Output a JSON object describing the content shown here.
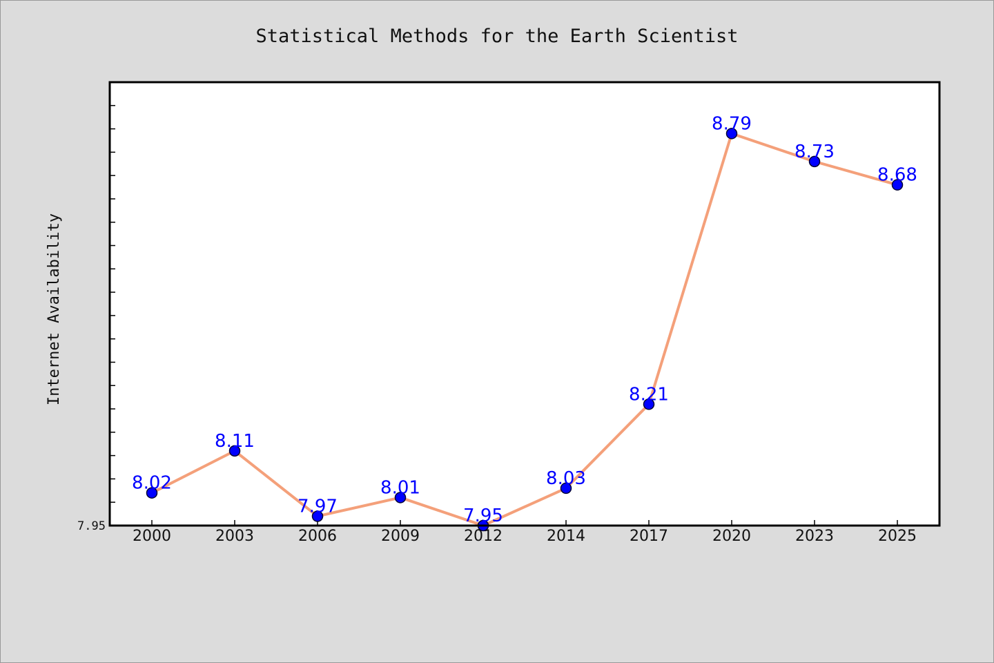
{
  "chart_data": {
    "type": "line",
    "title": "Statistical Methods for the Earth Scientist",
    "xlabel": "",
    "ylabel": "Internet Availability",
    "categories": [
      "2000",
      "2003",
      "2006",
      "2009",
      "2012",
      "2014",
      "2017",
      "2020",
      "2023",
      "2025"
    ],
    "series": [
      {
        "values": [
          8.02,
          8.11,
          7.97,
          8.01,
          7.95,
          8.03,
          8.21,
          8.79,
          8.73,
          8.68
        ]
      }
    ],
    "data_labels": [
      "8.02",
      "8.11",
      "7.97",
      "8.01",
      "7.95",
      "8.03",
      "8.21",
      "8.79",
      "8.73",
      "8.68"
    ],
    "ylim": [
      7.95,
      8.9
    ],
    "y_tick_labels": [
      {
        "value": 7.95,
        "label": "7.95"
      }
    ],
    "y_minor_tick_step": 0.05,
    "grid": false,
    "legend": "none",
    "colors": {
      "background": "#dcdcdc",
      "plot_background": "#ffffff",
      "frame": "#000000",
      "line": "#f4a07a",
      "marker_fill": "#0000ff",
      "marker_edge": "#000033",
      "data_label": "#0000ff"
    }
  }
}
